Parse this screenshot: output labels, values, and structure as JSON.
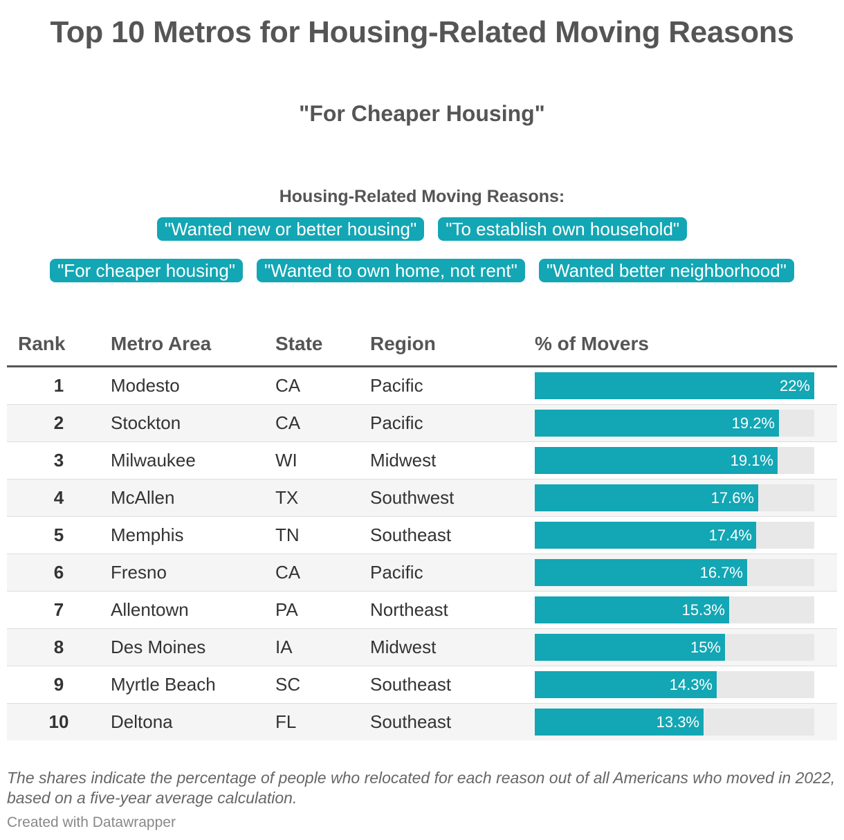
{
  "title": "Top 10 Metros for Housing-Related Moving Reasons",
  "subtitle": "\"For Cheaper Housing\"",
  "reasons": {
    "heading": "Housing-Related Moving Reasons:",
    "row1": [
      "\"Wanted new or better housing\"",
      "\"To establish own household\""
    ],
    "row2": [
      "\"For cheaper housing\"",
      "\"Wanted to own home, not rent\"",
      "\"Wanted better neighborhood\""
    ]
  },
  "table": {
    "headers": {
      "rank": "Rank",
      "metro": "Metro Area",
      "state": "State",
      "region": "Region",
      "pct": "% of Movers"
    }
  },
  "chart_data": {
    "type": "table",
    "value_max": 22,
    "rows": [
      {
        "rank": "1",
        "metro": "Modesto",
        "state": "CA",
        "region": "Pacific",
        "value": 22,
        "label": "22%"
      },
      {
        "rank": "2",
        "metro": "Stockton",
        "state": "CA",
        "region": "Pacific",
        "value": 19.2,
        "label": "19.2%"
      },
      {
        "rank": "3",
        "metro": "Milwaukee",
        "state": "WI",
        "region": "Midwest",
        "value": 19.1,
        "label": "19.1%"
      },
      {
        "rank": "4",
        "metro": "McAllen",
        "state": "TX",
        "region": "Southwest",
        "value": 17.6,
        "label": "17.6%"
      },
      {
        "rank": "5",
        "metro": "Memphis",
        "state": "TN",
        "region": "Southeast",
        "value": 17.4,
        "label": "17.4%"
      },
      {
        "rank": "6",
        "metro": "Fresno",
        "state": "CA",
        "region": "Pacific",
        "value": 16.7,
        "label": "16.7%"
      },
      {
        "rank": "7",
        "metro": "Allentown",
        "state": "PA",
        "region": "Northeast",
        "value": 15.3,
        "label": "15.3%"
      },
      {
        "rank": "8",
        "metro": "Des Moines",
        "state": "IA",
        "region": "Midwest",
        "value": 15,
        "label": "15%"
      },
      {
        "rank": "9",
        "metro": "Myrtle Beach",
        "state": "SC",
        "region": "Southeast",
        "value": 14.3,
        "label": "14.3%"
      },
      {
        "rank": "10",
        "metro": "Deltona",
        "state": "FL",
        "region": "Southeast",
        "value": 13.3,
        "label": "13.3%"
      }
    ]
  },
  "notes": "The shares indicate the percentage of people who relocated for each reason out of all Americans who moved in 2022, based on a five-year average calculation.",
  "credit": "Created with Datawrapper",
  "colors": {
    "accent": "#13a6b4",
    "track": "#e8e8e8"
  }
}
